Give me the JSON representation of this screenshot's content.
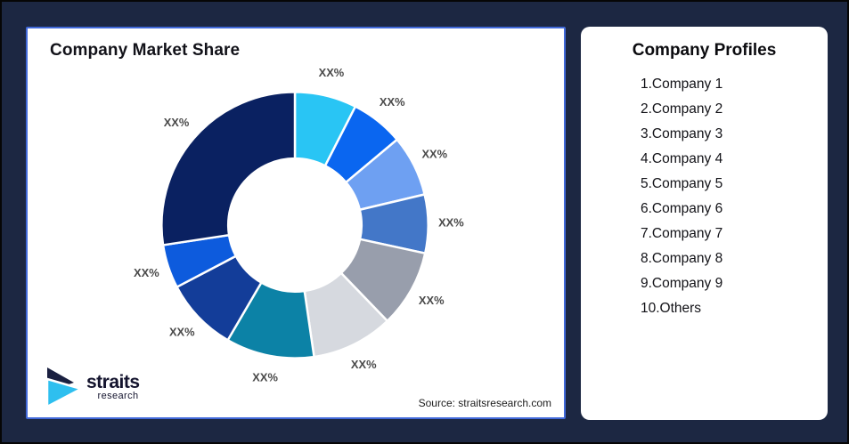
{
  "page": {
    "background_color": "#1C2742",
    "outer_border_color": "#060606"
  },
  "chart_card": {
    "title": "Company Market Share",
    "border_color": "#4169D9",
    "source": "Source: straitsresearch.com",
    "logo": {
      "brand": "straits",
      "sub": "research",
      "navy_color": "#1A2040",
      "cyan_color": "#2EBFEF"
    }
  },
  "chart_data": {
    "type": "pie",
    "variant": "donut",
    "title": "Company Market Share",
    "start_angle_deg": 0,
    "direction": "clockwise",
    "inner_radius_ratio": 0.5,
    "legend": "none",
    "labels": [
      "XX%",
      "XX%",
      "XX%",
      "XX%",
      "XX%",
      "XX%",
      "XX%",
      "XX%",
      "XX%",
      "XX%"
    ],
    "values": [
      7.5,
      6.4,
      7.4,
      7.1,
      9.4,
      9.9,
      10.7,
      8.9,
      5.3,
      27.4
    ],
    "colors": [
      "#29C5F4",
      "#0A66F0",
      "#6EA0F2",
      "#4377C8",
      "#989EAC",
      "#D6D9DF",
      "#0C82A6",
      "#133D99",
      "#0D5BDD",
      "#0A2161"
    ],
    "slice_gap_color": "#FFFFFF",
    "label_color": "#4A4A4A",
    "source_note": "Source: straitsresearch.com"
  },
  "profiles": {
    "title": "Company Profiles",
    "items": [
      "1.Company 1",
      "2.Company 2",
      "3.Company 3",
      "4.Company 4",
      "5.Company 5",
      "6.Company 6",
      "7.Company 7",
      "8.Company 8",
      "9.Company 9",
      "10.Others"
    ]
  }
}
